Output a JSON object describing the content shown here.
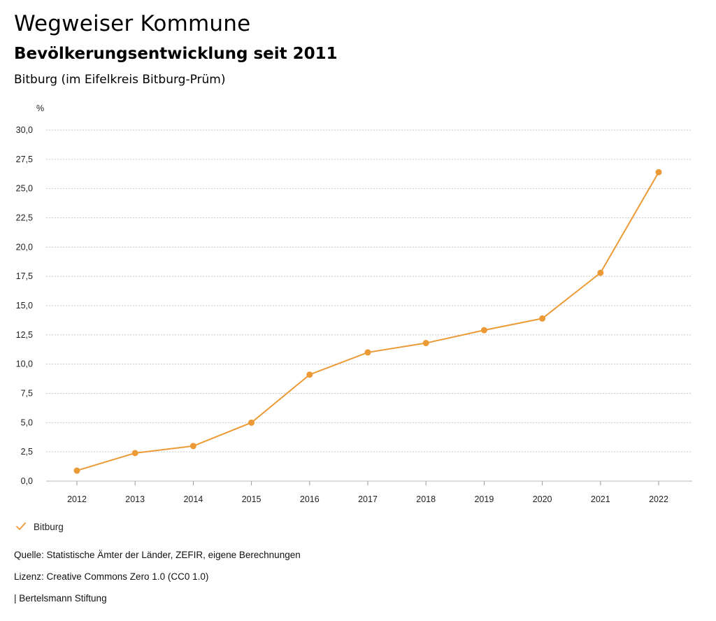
{
  "header": {
    "title": "Wegweiser Kommune",
    "subtitle": "Bevölkerungsentwicklung seit 2011",
    "region": "Bitburg (im Eifelkreis Bitburg-Prüm)"
  },
  "chart_data": {
    "type": "line",
    "title": "Bevölkerungsentwicklung seit 2011",
    "xlabel": "",
    "ylabel": "%",
    "ylim": [
      0,
      30
    ],
    "yticks": [
      "0,0",
      "2,5",
      "5,0",
      "7,5",
      "10,0",
      "12,5",
      "15,0",
      "17,5",
      "20,0",
      "22,5",
      "25,0",
      "27,5",
      "30,0"
    ],
    "grid": true,
    "categories": [
      "2012",
      "2013",
      "2014",
      "2015",
      "2016",
      "2017",
      "2018",
      "2019",
      "2020",
      "2021",
      "2022"
    ],
    "series": [
      {
        "name": "Bitburg",
        "color": "#eb9a36",
        "values": [
          0.9,
          2.4,
          3.0,
          5.0,
          9.1,
          11.0,
          11.8,
          12.9,
          13.9,
          17.8,
          26.4
        ]
      }
    ],
    "legend_position": "bottom-left"
  },
  "legend": {
    "label": "Bitburg",
    "color": "#eb9a36"
  },
  "footer": {
    "source": "Quelle: Statistische Ämter der Länder, ZEFIR, eigene Berechnungen",
    "license": "Lizenz: Creative Commons Zero 1.0 (CC0 1.0)",
    "publisher": "| Bertelsmann Stiftung"
  }
}
